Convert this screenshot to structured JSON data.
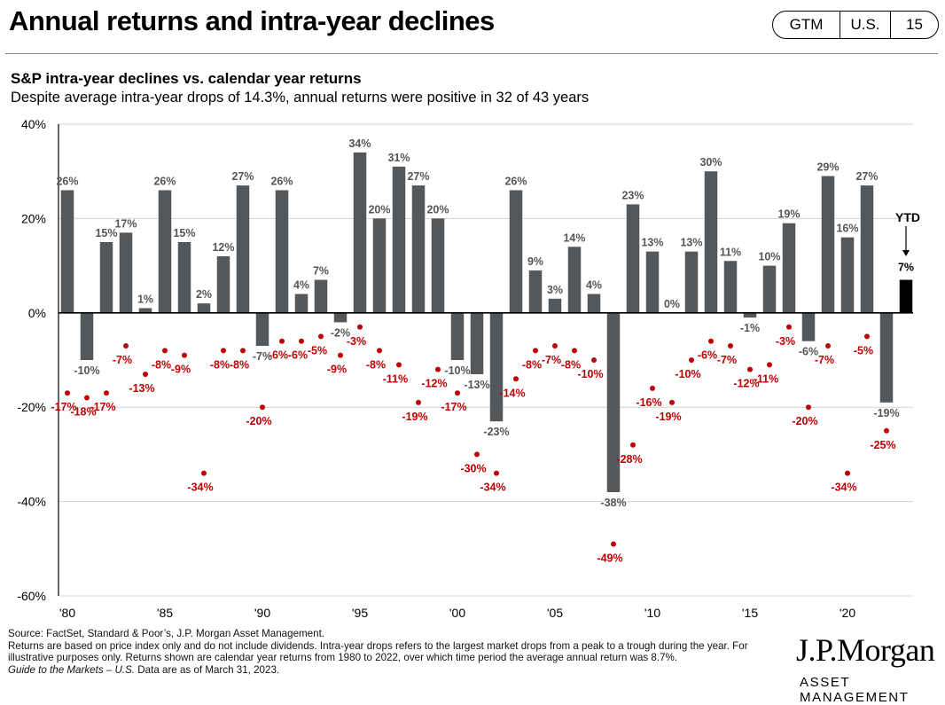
{
  "header": {
    "title": "Annual returns and intra-year declines",
    "badge_section": "GTM",
    "badge_region": "U.S.",
    "badge_page": "15"
  },
  "chart_title": "S&P intra-year declines vs. calendar year returns",
  "chart_subtitle": "Despite average intra-year drops of 14.3%, annual returns were positive in 32 of 43 years",
  "footnote": {
    "source": "Source: FactSet, Standard & Poor’s, J.P. Morgan Asset Management.",
    "note": "Returns are based on price index only and do not include dividends. Intra-year drops refers to the largest market drops from a peak to a trough during the year. For illustrative purposes only. Returns shown are calendar year returns from 1980 to 2022, over which time period the average annual return was 8.7%.",
    "guide_italic": "Guide to the Markets – U.S.",
    "guide_rest": " Data are as of March 31, 2023."
  },
  "logo": {
    "top": "J.P.Morgan",
    "bottom": "ASSET MANAGEMENT"
  },
  "chart_data": {
    "type": "bar",
    "x_years": [
      1980,
      1981,
      1982,
      1983,
      1984,
      1985,
      1986,
      1987,
      1988,
      1989,
      1990,
      1991,
      1992,
      1993,
      1994,
      1995,
      1996,
      1997,
      1998,
      1999,
      2000,
      2001,
      2002,
      2003,
      2004,
      2005,
      2006,
      2007,
      2008,
      2009,
      2010,
      2011,
      2012,
      2013,
      2014,
      2015,
      2016,
      2017,
      2018,
      2019,
      2020,
      2021,
      2022
    ],
    "tick_labels": [
      "'80",
      "'85",
      "'90",
      "'95",
      "'00",
      "'05",
      "'10",
      "'15",
      "'20"
    ],
    "tick_years": [
      1980,
      1985,
      1990,
      1995,
      2000,
      2005,
      2010,
      2015,
      2020
    ],
    "ylim": [
      -60,
      40
    ],
    "yticks": [
      40,
      20,
      0,
      -20,
      -40,
      -60
    ],
    "ytick_labels": [
      "40%",
      "20%",
      "0%",
      "-20%",
      "-40%",
      "-60%"
    ],
    "series": [
      {
        "name": "",
        "kind": "bar",
        "color": "#54585a",
        "values": [
          26,
          -10,
          15,
          17,
          1,
          26,
          15,
          2,
          12,
          27,
          -7,
          26,
          4,
          7,
          -2,
          34,
          20,
          31,
          27,
          20,
          -10,
          -13,
          -23,
          26,
          9,
          3,
          14,
          4,
          -38,
          23,
          13,
          0,
          13,
          30,
          11,
          -1,
          10,
          19,
          -6,
          29,
          16,
          27,
          -19
        ],
        "labels": [
          "26%",
          "-10%",
          "15%",
          "17%",
          "1%",
          "26%",
          "15%",
          "2%",
          "12%",
          "27%",
          "-7%",
          "26%",
          "4%",
          "7%",
          "-2%",
          "34%",
          "20%",
          "31%",
          "27%",
          "20%",
          "-10%",
          "-13%",
          "-23%",
          "26%",
          "9%",
          "3%",
          "14%",
          "4%",
          "-38%",
          "23%",
          "13%",
          "0%",
          "13%",
          "30%",
          "11%",
          "-1%",
          "10%",
          "19%",
          "-6%",
          "29%",
          "16%",
          "27%",
          "-19%"
        ]
      },
      {
        "name": "",
        "kind": "dot",
        "color": "#c00000",
        "values": [
          -17,
          -18,
          -17,
          -7,
          -13,
          -8,
          -9,
          -34,
          -8,
          -8,
          -20,
          -6,
          -6,
          -5,
          -9,
          -3,
          -8,
          -11,
          -19,
          -12,
          -17,
          -30,
          -34,
          -14,
          -8,
          -7,
          -8,
          -10,
          -49,
          -28,
          -16,
          -19,
          -10,
          -6,
          -7,
          -12,
          -11,
          -3,
          -20,
          -7,
          -34,
          -5,
          -25
        ],
        "labels": [
          "-17%",
          "-18%",
          "-17%",
          "-7%",
          "-13%",
          "-8%",
          "-9%",
          "-34%",
          "-8%",
          "-8%",
          "-20%",
          "-6%",
          "-6%",
          "-5%",
          "-9%",
          "-3%",
          "-8%",
          "-11%",
          "-19%",
          "-12%",
          "-17%",
          "-30%",
          "-34%",
          "-14%",
          "-8%",
          "-7%",
          "-8%",
          "-10%",
          "-49%",
          "-28%",
          "-16%",
          "-19%",
          "-10%",
          "-6%",
          "-7%",
          "-12%",
          "-11%",
          "-3%",
          "-20%",
          "-7%",
          "-34%",
          "-5%",
          "-25%"
        ]
      }
    ],
    "ytd": {
      "label": "YTD",
      "value": 7,
      "value_label": "7%",
      "color": "#000000"
    },
    "grid": true
  }
}
